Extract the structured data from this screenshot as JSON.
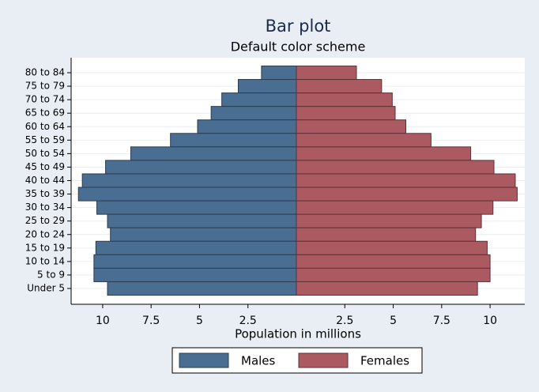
{
  "chart_data": {
    "type": "pyramid",
    "title": "Bar plot",
    "subtitle": "Default color scheme",
    "x_label": "Population in millions",
    "categories": [
      "80 to 84",
      "75 to 79",
      "70 to 74",
      "65 to 69",
      "60 to 64",
      "55 to 59",
      "50 to 54",
      "45 to 49",
      "40 to 44",
      "35 to 39",
      "30 to 34",
      "25 to 29",
      "20 to 24",
      "15 to 19",
      "10 to 14",
      "5 to 9",
      "Under 5"
    ],
    "series": [
      {
        "name": "Males",
        "side": "left",
        "color": "#4a6e92",
        "values": [
          1.8,
          3.0,
          3.85,
          4.4,
          5.1,
          6.5,
          8.55,
          9.85,
          11.05,
          11.25,
          10.3,
          9.75,
          9.6,
          10.35,
          10.45,
          10.45,
          9.75
        ]
      },
      {
        "name": "Females",
        "side": "right",
        "color": "#aa5a60",
        "values": [
          3.1,
          4.4,
          4.95,
          5.1,
          5.65,
          6.95,
          9.0,
          10.2,
          11.3,
          11.4,
          10.15,
          9.55,
          9.25,
          9.85,
          10.0,
          10.0,
          9.35
        ]
      }
    ],
    "xlim": [
      0,
      11.75
    ],
    "xticks": [
      2.5,
      5,
      7.5,
      10
    ],
    "grid": true,
    "legend": "bottom"
  }
}
